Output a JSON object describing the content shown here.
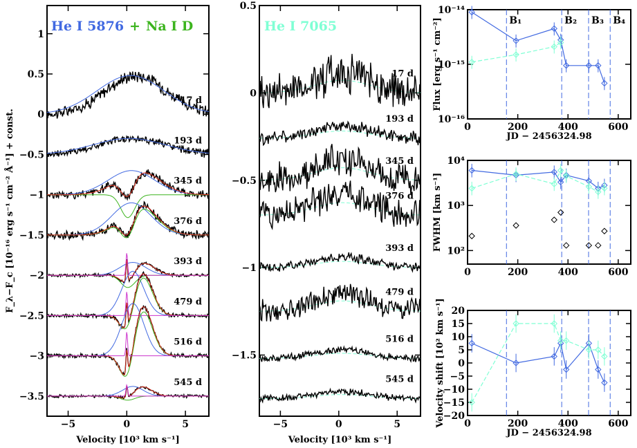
{
  "colors": {
    "black": "#000000",
    "blue": "#4169e1",
    "cyan": "#7fffd4",
    "green": "#3cb41e",
    "red": "#e0301e",
    "magenta": "#cc33cc"
  },
  "chart_data": [
    {
      "type": "line",
      "panel": "He I 5876 + Na I D",
      "title_parts": [
        "He I 5876",
        "+",
        "Na I D"
      ],
      "xlabel": "Velocity [10³ km s⁻¹]",
      "ylabel": "F_λ−F_c [10⁻¹⁶ erg s⁻¹ cm⁻² Å⁻¹] + const.",
      "xlim": [
        -6.8,
        7
      ],
      "ylim": [
        -3.75,
        1.35
      ],
      "xticks": [
        -5,
        0,
        5
      ],
      "yticks": [
        1,
        0.5,
        0,
        -0.5,
        -1,
        -1.5,
        -2,
        -2.5,
        -3,
        -3.5
      ],
      "ytick_labels": [
        "1",
        "0.5",
        "0",
        "−0.5",
        "−1",
        "−1.5",
        "−2",
        "−2.5",
        "−3",
        "−3.5"
      ],
      "epochs": [
        {
          "label": "17 d",
          "offset": 0.0,
          "broad_amp": 0.48,
          "broad_center": 0.8,
          "broad_sigma": 2.6,
          "narrow_amp": 0.0,
          "abs_depth": 0.0,
          "noise": 0.06
        },
        {
          "label": "193 d",
          "offset": -0.5,
          "broad_amp": 0.2,
          "broad_center": 0.5,
          "broad_sigma": 2.8,
          "narrow_amp": 0.0,
          "abs_depth": 0.0,
          "noise": 0.04
        },
        {
          "label": "345 d",
          "offset": -1.0,
          "broad_amp": 0.3,
          "broad_center": 1.0,
          "broad_sigma": 1.8,
          "narrow_amp": 0.0,
          "abs_depth": 0.28,
          "noise": 0.04
        },
        {
          "label": "376 d",
          "offset": -1.5,
          "broad_amp": 0.4,
          "broad_center": 1.0,
          "broad_sigma": 1.5,
          "narrow_amp": 0.0,
          "abs_depth": 0.32,
          "noise": 0.04
        },
        {
          "label": "393 d",
          "offset": -2.0,
          "broad_amp": 0.16,
          "broad_center": 1.3,
          "broad_sigma": 1.0,
          "narrow_amp": 0.28,
          "abs_depth": 0.15,
          "noise": 0.015
        },
        {
          "label": "479 d",
          "offset": -2.5,
          "broad_amp": 0.55,
          "broad_center": 1.3,
          "broad_sigma": 0.85,
          "narrow_amp": 0.3,
          "abs_depth": 0.3,
          "noise": 0.02
        },
        {
          "label": "516 d",
          "offset": -3.0,
          "broad_amp": 0.65,
          "broad_center": 1.3,
          "broad_sigma": 0.85,
          "narrow_amp": 0.3,
          "abs_depth": 0.42,
          "noise": 0.02
        },
        {
          "label": "545 d",
          "offset": -3.5,
          "broad_amp": 0.12,
          "broad_center": 1.3,
          "broad_sigma": 0.8,
          "narrow_amp": 0.14,
          "abs_depth": 0.05,
          "noise": 0.015
        }
      ]
    },
    {
      "type": "line",
      "panel": "He I 7065",
      "title": "He I 7065",
      "xlabel": "Velocity [10³ km s⁻¹]",
      "xlim": [
        -6.8,
        7
      ],
      "ylim": [
        -1.85,
        0.5
      ],
      "xticks": [
        -5,
        0,
        5
      ],
      "yticks": [
        0.5,
        0,
        -0.5,
        -1,
        -1.5
      ],
      "ytick_labels": [
        "0.5",
        "0",
        "−0.5",
        "−1",
        "−1.5"
      ],
      "epochs": [
        {
          "label": "17 d",
          "offset": 0.0,
          "amp": 0.12,
          "noise": 0.09
        },
        {
          "label": "193 d",
          "offset": -0.26,
          "amp": 0.07,
          "noise": 0.03
        },
        {
          "label": "345 d",
          "offset": -0.5,
          "amp": 0.12,
          "noise": 0.07
        },
        {
          "label": "376 d",
          "offset": -0.7,
          "amp": 0.12,
          "noise": 0.07
        },
        {
          "label": "393 d",
          "offset": -1.0,
          "amp": 0.06,
          "noise": 0.02
        },
        {
          "label": "479 d",
          "offset": -1.25,
          "amp": 0.1,
          "noise": 0.05
        },
        {
          "label": "516 d",
          "offset": -1.52,
          "amp": 0.05,
          "noise": 0.015
        },
        {
          "label": "545 d",
          "offset": -1.75,
          "amp": 0.04,
          "noise": 0.015
        }
      ]
    },
    {
      "type": "line",
      "panel": "Flux",
      "ylabel": "Flux [erg s⁻¹ cm⁻²]",
      "xlabel": "JD − 2456324.98",
      "xlim": [
        0,
        650
      ],
      "yscale": "log",
      "ylim": [
        1e-16,
        1e-14
      ],
      "xticks": [
        0,
        200,
        400,
        600
      ],
      "ytick_labels": [
        "10⁻¹⁴",
        "10⁻¹⁵",
        "10⁻¹⁶"
      ],
      "bins": [
        "B₁",
        "B₂",
        "B₃",
        "B₄"
      ],
      "bin_edges": [
        155,
        375,
        482,
        568
      ],
      "series": [
        {
          "color": "blue",
          "x": [
            17,
            193,
            345,
            371,
            393,
            483,
            520,
            545
          ],
          "y": [
            9e-15,
            2.7e-15,
            4.5e-15,
            2.8e-15,
            9.5e-16,
            9.5e-16,
            9.5e-16,
            4.5e-16
          ]
        },
        {
          "color": "cyan",
          "x": [
            17,
            193,
            345,
            371
          ],
          "y": [
            1.1e-15,
            1.5e-15,
            2.1e-15,
            2.5e-15
          ]
        }
      ]
    },
    {
      "type": "scatter",
      "panel": "FWHM",
      "ylabel": "FWHM [km s⁻¹]",
      "xlim": [
        0,
        650
      ],
      "yscale": "log",
      "ylim": [
        50,
        10000
      ],
      "xticks": [
        0,
        200,
        400,
        600
      ],
      "ytick_labels": [
        "10⁴",
        "10³",
        "10²"
      ],
      "bin_edges": [
        155,
        375,
        482,
        568
      ],
      "series": [
        {
          "color": "blue",
          "x": [
            17,
            193,
            345,
            371,
            393,
            483,
            520,
            545
          ],
          "y": [
            6000,
            4700,
            5500,
            3300,
            4700,
            3500,
            2400,
            2800
          ]
        },
        {
          "color": "cyan",
          "x": [
            17,
            193,
            345,
            371,
            393,
            483,
            520,
            545
          ],
          "y": [
            2400,
            5000,
            3000,
            6000,
            4500,
            2600,
            2000,
            2400
          ]
        },
        {
          "color": "black",
          "marker_only": true,
          "x": [
            17,
            193,
            345,
            371,
            393,
            483,
            520,
            545
          ],
          "y": [
            210,
            360,
            480,
            700,
            130,
            130,
            130,
            270
          ]
        }
      ]
    },
    {
      "type": "line",
      "panel": "Velocity shift",
      "ylabel": "Velocity shift [10² km s⁻¹]",
      "xlabel": "JD − 2456324.98",
      "xlim": [
        0,
        650
      ],
      "ylim": [
        -20,
        20
      ],
      "xticks": [
        0,
        200,
        400,
        600
      ],
      "yticks": [
        20,
        15,
        10,
        5,
        0,
        -5,
        -10,
        -15,
        -20
      ],
      "ytick_labels": [
        "20",
        "15",
        "10",
        "5",
        "0",
        "−5",
        "−10",
        "−15",
        "−20"
      ],
      "bin_edges": [
        155,
        375,
        482,
        568
      ],
      "series": [
        {
          "color": "blue",
          "x": [
            17,
            193,
            345,
            371,
            393,
            483,
            520,
            545
          ],
          "y": [
            7.5,
            0,
            2.5,
            7.5,
            -2.5,
            7.5,
            -2.5,
            -7.5
          ]
        },
        {
          "color": "cyan",
          "x": [
            17,
            193,
            345,
            371,
            393,
            483,
            520,
            545
          ],
          "y": [
            -15,
            15,
            15,
            8.5,
            8.5,
            5,
            5,
            2.5
          ]
        }
      ]
    }
  ]
}
